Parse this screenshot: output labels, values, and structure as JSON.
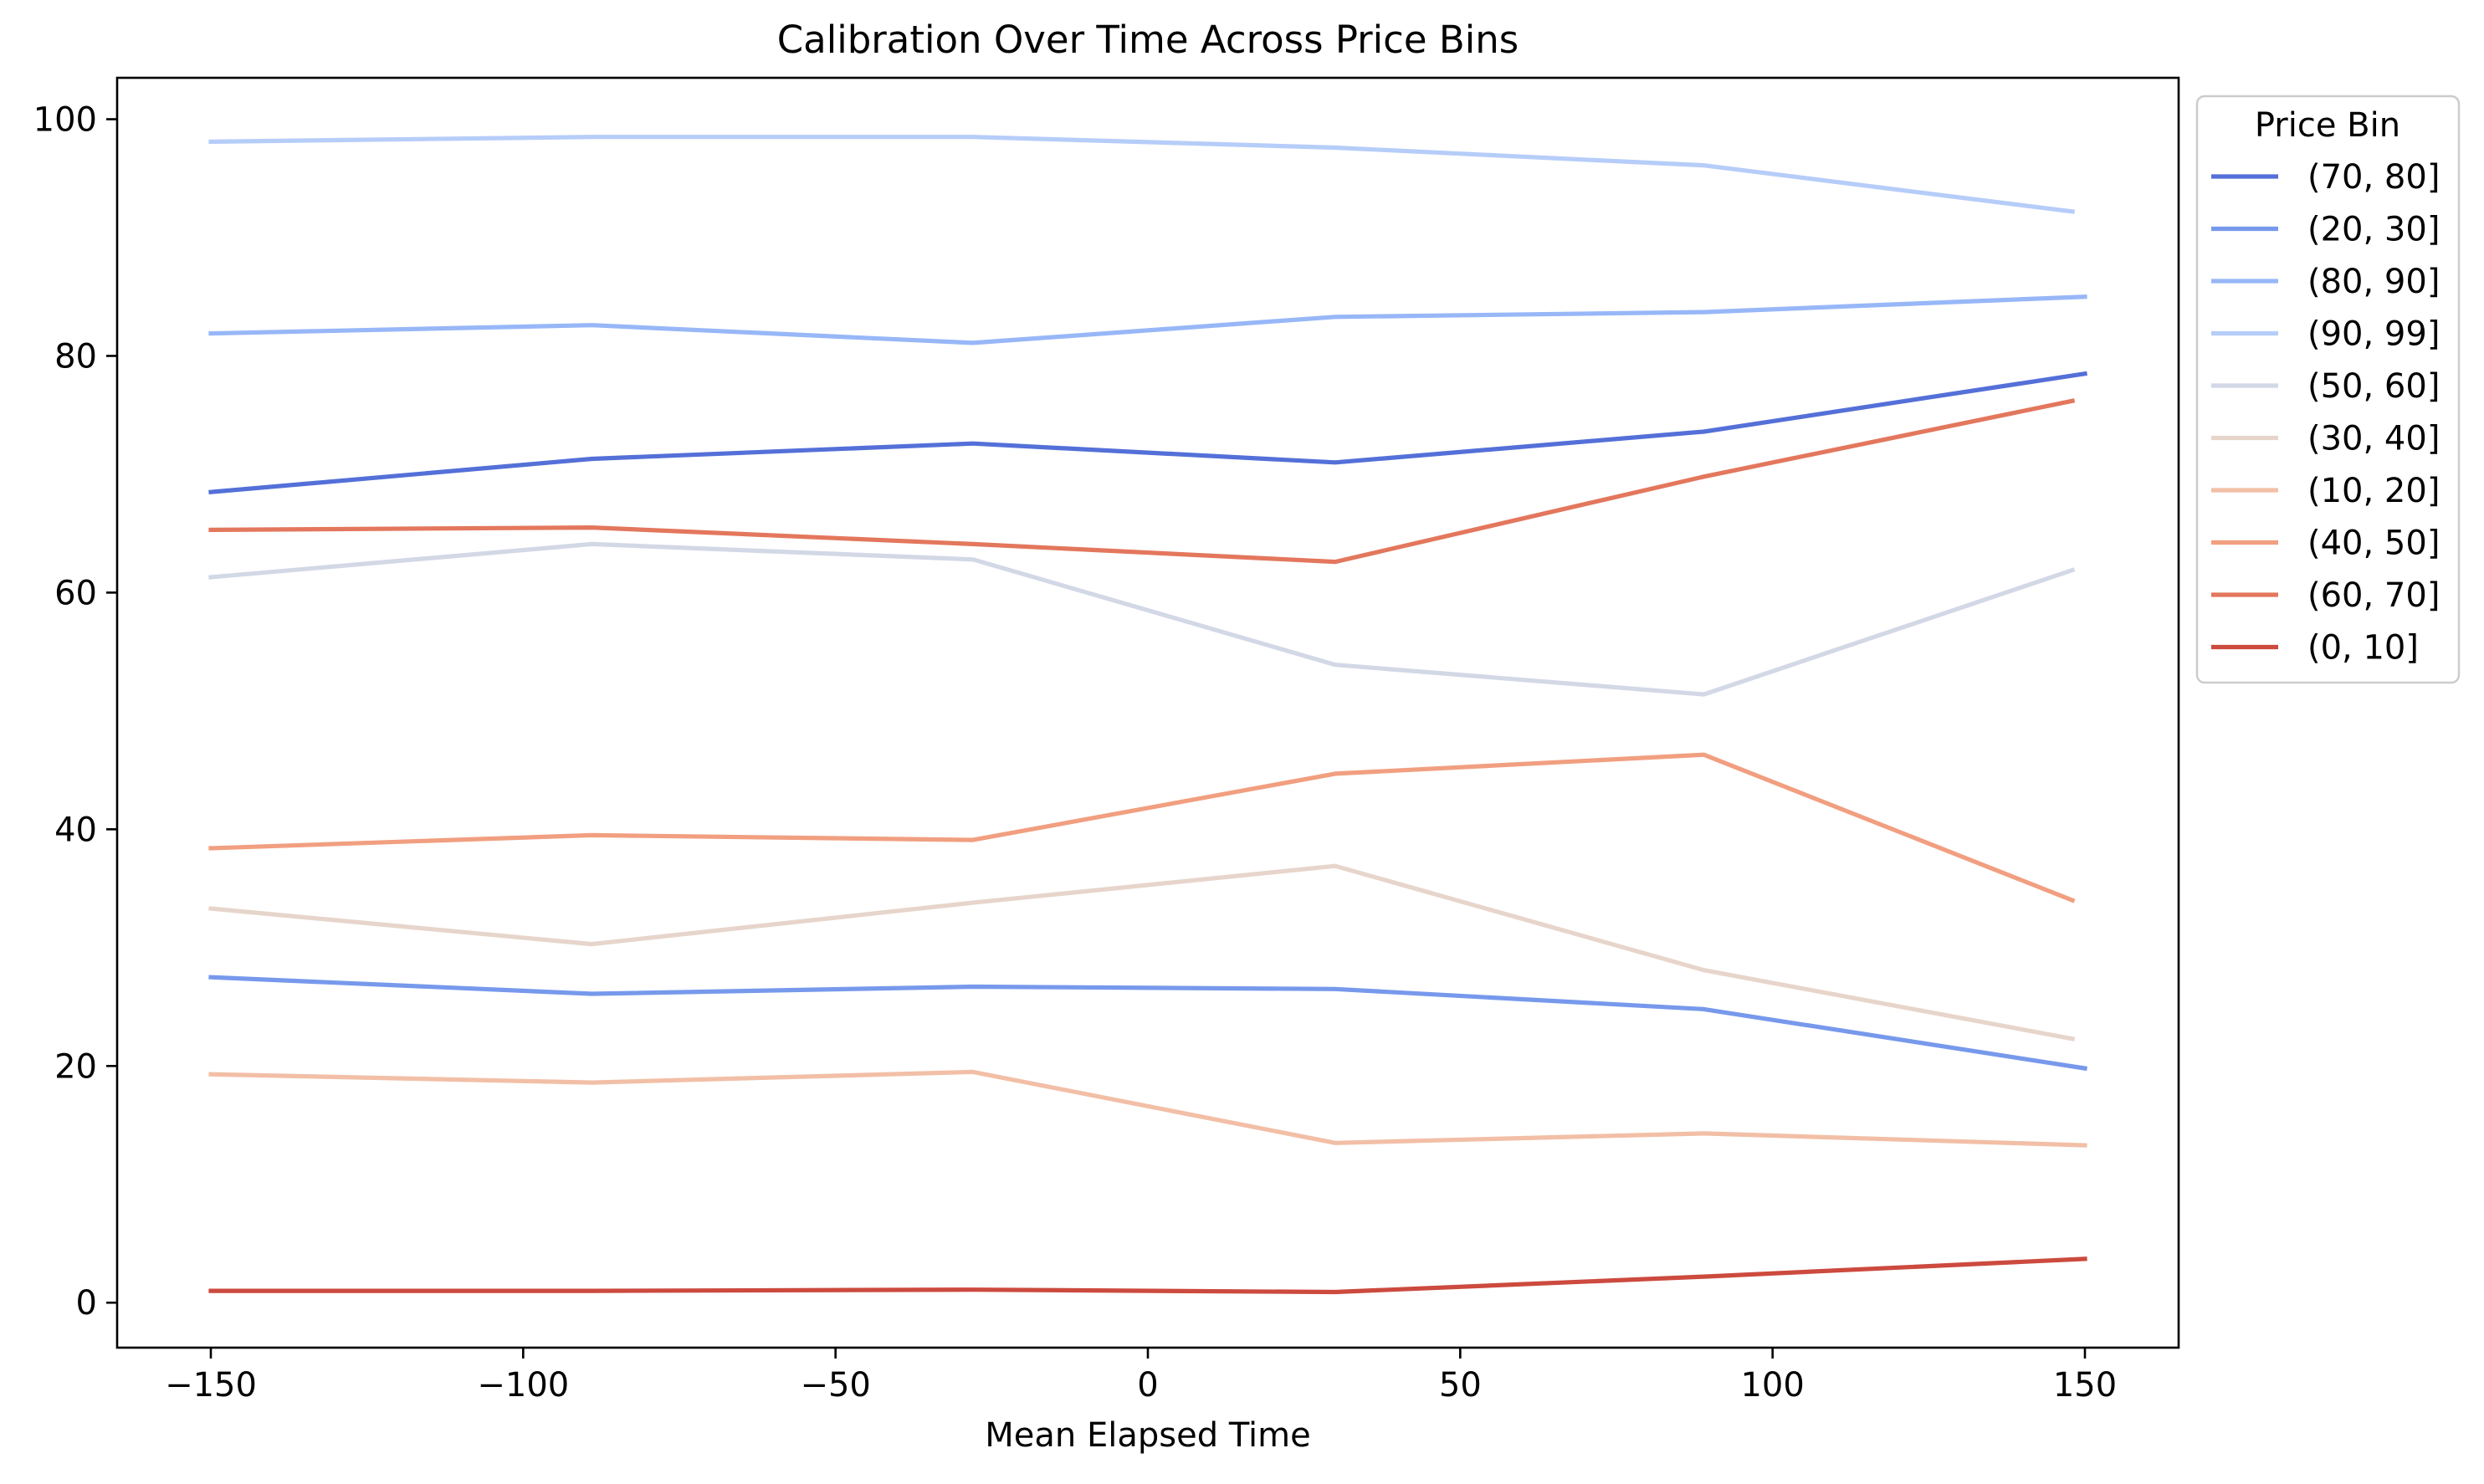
{
  "chart_data": {
    "type": "line",
    "title": "Calibration Over Time Across Price Bins",
    "xlabel": "Mean Elapsed Time",
    "ylabel": "",
    "xlim": [
      -165,
      165
    ],
    "ylim": [
      -3.8,
      103.5
    ],
    "xticks": [
      -150,
      -100,
      -50,
      0,
      50,
      100,
      150
    ],
    "xtick_labels": [
      "−150",
      "−100",
      "−50",
      "0",
      "50",
      "100",
      "150"
    ],
    "yticks": [
      0,
      20,
      40,
      60,
      80,
      100
    ],
    "ytick_labels": [
      "0",
      "20",
      "40",
      "60",
      "80",
      "100"
    ],
    "grid": false,
    "legend": {
      "title": "Price Bin",
      "placement": "outside-top-right"
    },
    "series": [
      {
        "name": "(70, 80]",
        "color": "#5470d8",
        "x": [
          -150,
          -89,
          -28,
          30,
          89,
          150
        ],
        "y": [
          68.5,
          71.3,
          72.6,
          71.0,
          73.6,
          78.5
        ]
      },
      {
        "name": "(20, 30]",
        "color": "#7799ec",
        "x": [
          -150,
          -89,
          -28,
          30,
          89,
          150
        ],
        "y": [
          27.5,
          26.1,
          26.7,
          26.5,
          24.8,
          19.8
        ]
      },
      {
        "name": "(80, 90]",
        "color": "#97b7f7",
        "x": [
          -150,
          -89,
          -28,
          30,
          89,
          150
        ],
        "y": [
          81.9,
          82.6,
          81.1,
          83.3,
          83.7,
          85.0
        ]
      },
      {
        "name": "(90, 99]",
        "color": "#b6cdf9",
        "x": [
          -150,
          -89,
          -28,
          30,
          89,
          148
        ],
        "y": [
          98.1,
          98.5,
          98.5,
          97.6,
          96.1,
          92.2
        ]
      },
      {
        "name": "(50, 60]",
        "color": "#d3d8e6",
        "x": [
          -150,
          -89,
          -28,
          30,
          89,
          148
        ],
        "y": [
          61.3,
          64.1,
          62.8,
          53.9,
          51.4,
          61.9
        ]
      },
      {
        "name": "(30, 40]",
        "color": "#e7d5cb",
        "x": [
          -150,
          -89,
          -28,
          30,
          89,
          148
        ],
        "y": [
          33.3,
          30.3,
          33.8,
          36.9,
          28.1,
          22.3
        ]
      },
      {
        "name": "(10, 20]",
        "color": "#f2bfa6",
        "x": [
          -150,
          -89,
          -28,
          30,
          89,
          150
        ],
        "y": [
          19.3,
          18.6,
          19.5,
          13.5,
          14.3,
          13.3
        ]
      },
      {
        "name": "(40, 50]",
        "color": "#f19f80",
        "x": [
          -150,
          -89,
          -28,
          30,
          89,
          148
        ],
        "y": [
          38.4,
          39.5,
          39.1,
          44.7,
          46.3,
          34.0
        ]
      },
      {
        "name": "(60, 70]",
        "color": "#e3775d",
        "x": [
          -150,
          -89,
          -28,
          30,
          89,
          148
        ],
        "y": [
          65.3,
          65.5,
          64.1,
          62.6,
          69.8,
          76.2
        ]
      },
      {
        "name": "(0, 10]",
        "color": "#cc4a3e",
        "x": [
          -150,
          -89,
          -28,
          30,
          89,
          150
        ],
        "y": [
          1.0,
          1.0,
          1.1,
          0.9,
          2.2,
          3.7
        ]
      }
    ]
  }
}
